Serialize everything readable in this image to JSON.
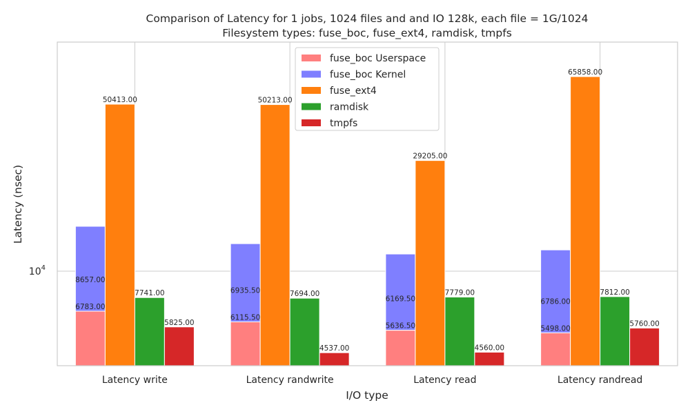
{
  "chart_data": {
    "type": "bar",
    "title_line1": "Comparison of Latency for 1 jobs, 1024 files and  and IO 128k, each file = 1G/1024",
    "title_line2": "Filesystem types: fuse_boc, fuse_ext4, ramdisk, tmpfs",
    "xlabel": "I/O type",
    "ylabel": "Latency (nsec)",
    "y_scale": "log",
    "ylim": [
      4000,
      92000
    ],
    "y_ticks": [
      {
        "value": 10000,
        "base": "10",
        "exp": "4"
      }
    ],
    "grid": true,
    "legend_position": "top-center",
    "categories": [
      "Latency write",
      "Latency randwrite",
      "Latency read",
      "Latency randread"
    ],
    "fuse_boc_stacked": {
      "userspace": {
        "name": "fuse_boc Userspace",
        "color": "#ff7f7f",
        "values": [
          6783.0,
          6115.5,
          5636.5,
          5498.0
        ]
      },
      "kernel": {
        "name": "fuse_boc Kernel",
        "color": "#7f7fff",
        "values": [
          8657.0,
          6935.5,
          6169.5,
          6786.0
        ]
      }
    },
    "series": [
      {
        "name": "fuse_ext4",
        "color": "#ff7f0e",
        "values": [
          50413.0,
          50213.0,
          29205.0,
          65858.0
        ]
      },
      {
        "name": "ramdisk",
        "color": "#2ca02c",
        "values": [
          7741.0,
          7694.0,
          7779.0,
          7812.0
        ]
      },
      {
        "name": "tmpfs",
        "color": "#d62728",
        "values": [
          5825.0,
          4537.0,
          4560.0,
          5760.0
        ]
      }
    ],
    "legend": [
      {
        "name": "fuse_boc Userspace",
        "color": "#ff7f7f"
      },
      {
        "name": "fuse_boc Kernel",
        "color": "#7f7fff"
      },
      {
        "name": "fuse_ext4",
        "color": "#ff7f0e"
      },
      {
        "name": "ramdisk",
        "color": "#2ca02c"
      },
      {
        "name": "tmpfs",
        "color": "#d62728"
      }
    ]
  }
}
